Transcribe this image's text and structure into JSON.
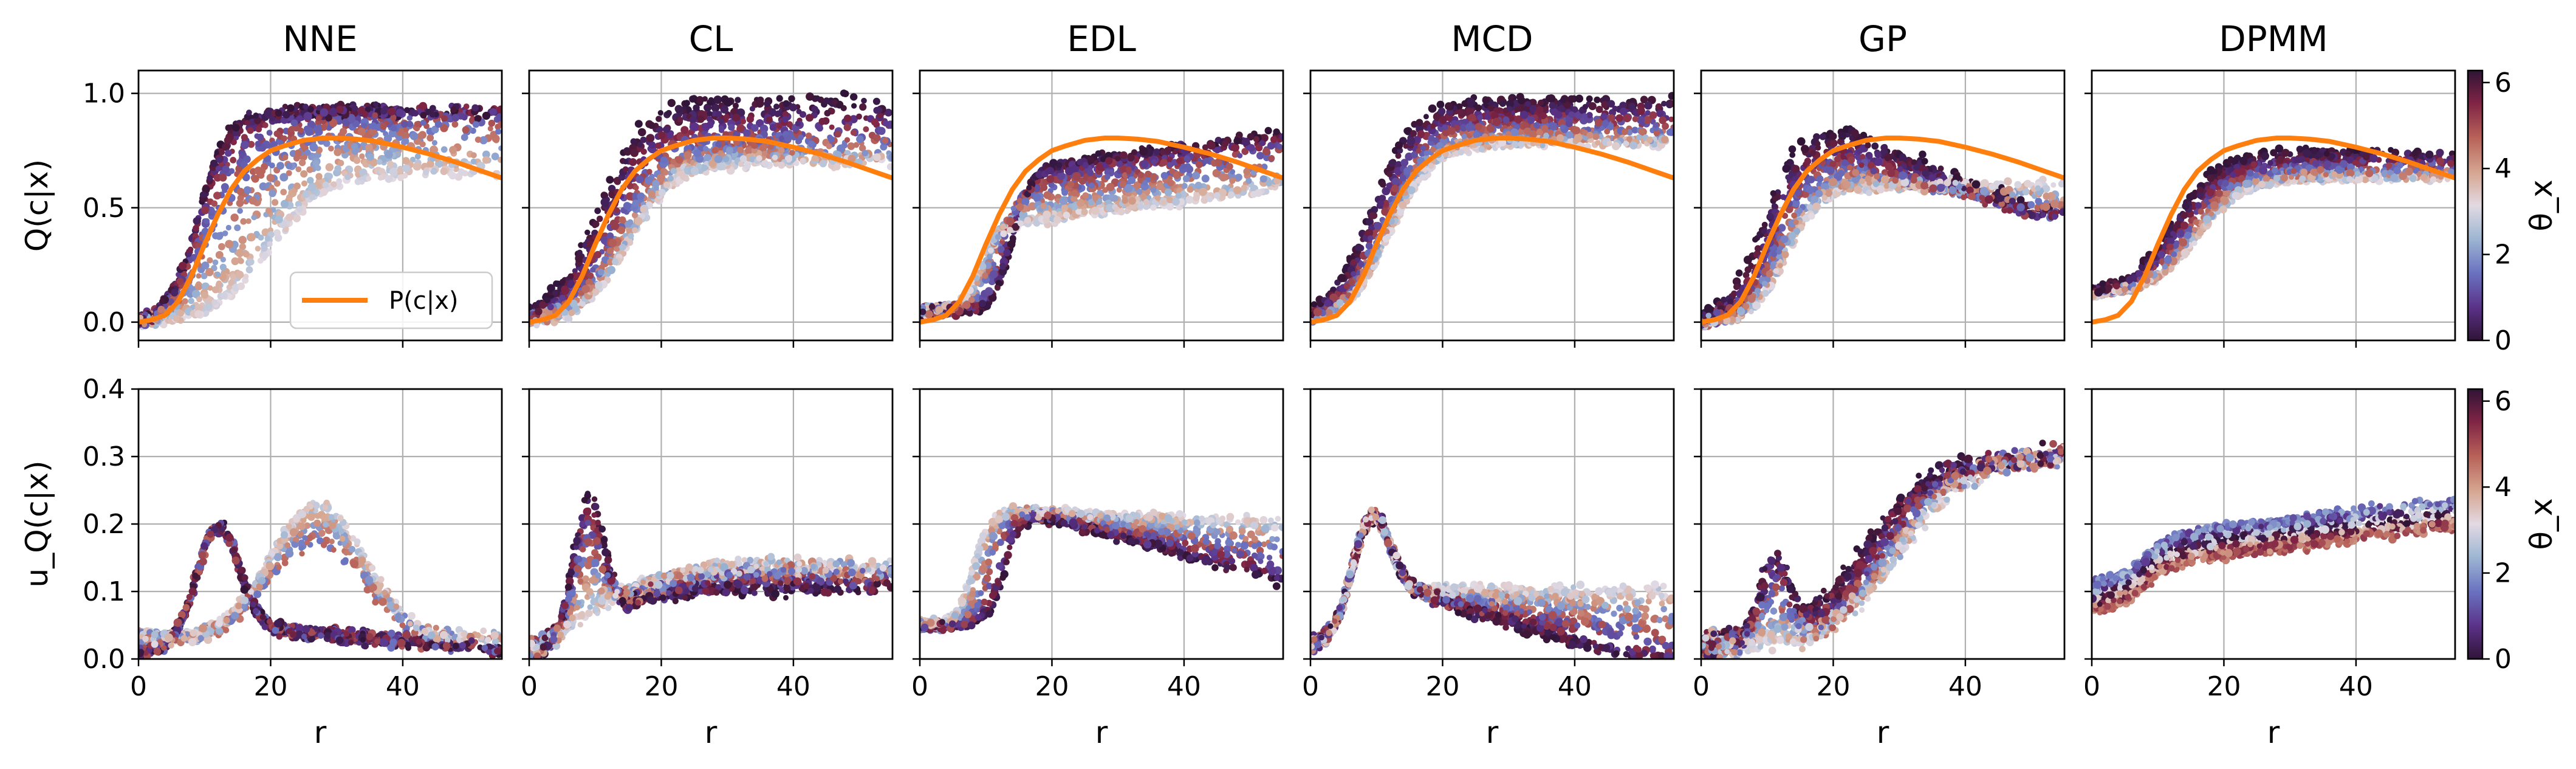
{
  "figure": {
    "columns": [
      "NNE",
      "CL",
      "EDL",
      "MCD",
      "GP",
      "DPMM"
    ],
    "row_ylabels": [
      "Q(c|x)",
      "u_Q(c|x)"
    ],
    "xlabel": "r",
    "legend_label": "P(c|x)",
    "colorbar_label": "θ_x",
    "colorbar_ticks": [
      0,
      2,
      4,
      6
    ],
    "colors": {
      "reference_curve": "#ff7f0e",
      "colormap": "twilight_shifted",
      "grid": "#b0b0b0"
    }
  },
  "chart_data": [
    {
      "type": "scatter",
      "row": "top",
      "ylabel": "Q(c|x)",
      "xlim": [
        0,
        55
      ],
      "ylim": [
        -0.08,
        1.1
      ],
      "xticks": [
        0,
        20,
        40
      ],
      "yticks": [
        0.0,
        0.5,
        1.0
      ],
      "grid": true,
      "legend_placement": "lower-right in NNE panel",
      "reference_series": {
        "name": "P(c|x)",
        "x": [
          0,
          2,
          4,
          6,
          8,
          10,
          12,
          14,
          16,
          18,
          20,
          22,
          25,
          28,
          30,
          33,
          36,
          40,
          44,
          48,
          52,
          55
        ],
        "y": [
          0.0,
          0.01,
          0.03,
          0.09,
          0.2,
          0.34,
          0.47,
          0.58,
          0.66,
          0.71,
          0.75,
          0.77,
          0.795,
          0.805,
          0.805,
          0.8,
          0.79,
          0.765,
          0.735,
          0.7,
          0.66,
          0.63
        ]
      },
      "panels": [
        {
          "name": "NNE",
          "color_value_range": [
            0,
            6.28
          ]
        },
        {
          "name": "CL",
          "color_value_range": [
            0,
            6.28
          ]
        },
        {
          "name": "EDL",
          "color_value_range": [
            0,
            6.28
          ]
        },
        {
          "name": "MCD",
          "color_value_range": [
            0,
            6.28
          ]
        },
        {
          "name": "GP",
          "color_value_range": [
            0,
            6.28
          ]
        },
        {
          "name": "DPMM",
          "color_value_range": [
            0,
            6.28
          ]
        }
      ]
    },
    {
      "type": "scatter",
      "row": "bottom",
      "ylabel": "u_Q(c|x)",
      "xlim": [
        0,
        55
      ],
      "ylim": [
        0.0,
        0.4
      ],
      "xticks": [
        0,
        20,
        40
      ],
      "yticks": [
        0.0,
        0.1,
        0.2,
        0.3,
        0.4
      ],
      "grid": true,
      "panels": [
        {
          "name": "NNE",
          "color_value_range": [
            0,
            6.28
          ]
        },
        {
          "name": "CL",
          "color_value_range": [
            0,
            6.28
          ]
        },
        {
          "name": "EDL",
          "color_value_range": [
            0,
            6.28
          ]
        },
        {
          "name": "MCD",
          "color_value_range": [
            0,
            6.28
          ]
        },
        {
          "name": "GP",
          "color_value_range": [
            0,
            6.28
          ]
        },
        {
          "name": "DPMM",
          "color_value_range": [
            0,
            6.28
          ]
        }
      ]
    }
  ]
}
